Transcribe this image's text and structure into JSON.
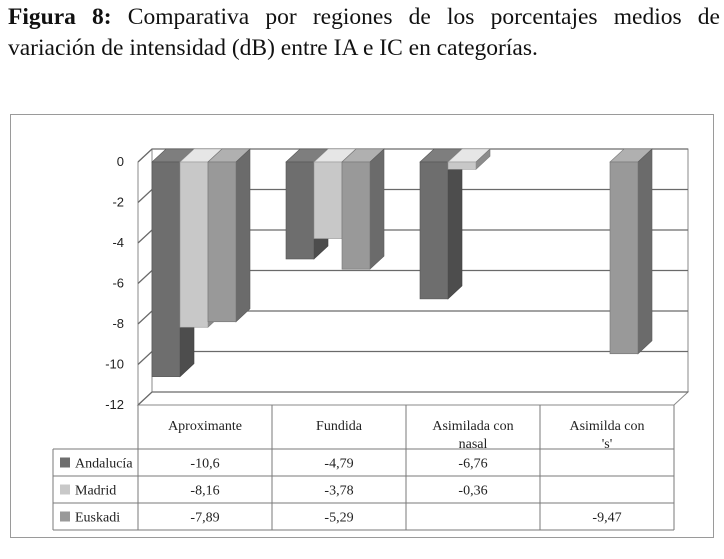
{
  "caption": {
    "label": "Figura 8:",
    "text": " Comparativa por regiones de los porcentajes medios de variación de intensidad (dB) entre IA e IC en categorías."
  },
  "chart_data": {
    "type": "bar",
    "categories": [
      "Aproximante",
      "Fundida",
      "Asimilada con nasal",
      "Asimilda con 's'"
    ],
    "series": [
      {
        "name": "Andalucía",
        "values": [
          -10.6,
          -4.79,
          -6.76,
          null
        ],
        "labels": [
          "-10,6",
          "-4,79",
          "-6,76",
          ""
        ],
        "color": "#6e6e6e"
      },
      {
        "name": "Madrid",
        "values": [
          -8.16,
          -3.78,
          -0.36,
          null
        ],
        "labels": [
          "-8,16",
          "-3,78",
          "-0,36",
          ""
        ],
        "color": "#c8c8c8"
      },
      {
        "name": "Euskadi",
        "values": [
          -7.89,
          -5.29,
          null,
          -9.47
        ],
        "labels": [
          "-7,89",
          "-5,29",
          "",
          "-9,47"
        ],
        "color": "#999999"
      }
    ],
    "ylim": [
      -12,
      0
    ],
    "yticks": [
      "0",
      "-2",
      "-4",
      "-6",
      "-8",
      "-10",
      "-12"
    ],
    "grid": true,
    "legend": "data-table",
    "render_3d": true
  }
}
